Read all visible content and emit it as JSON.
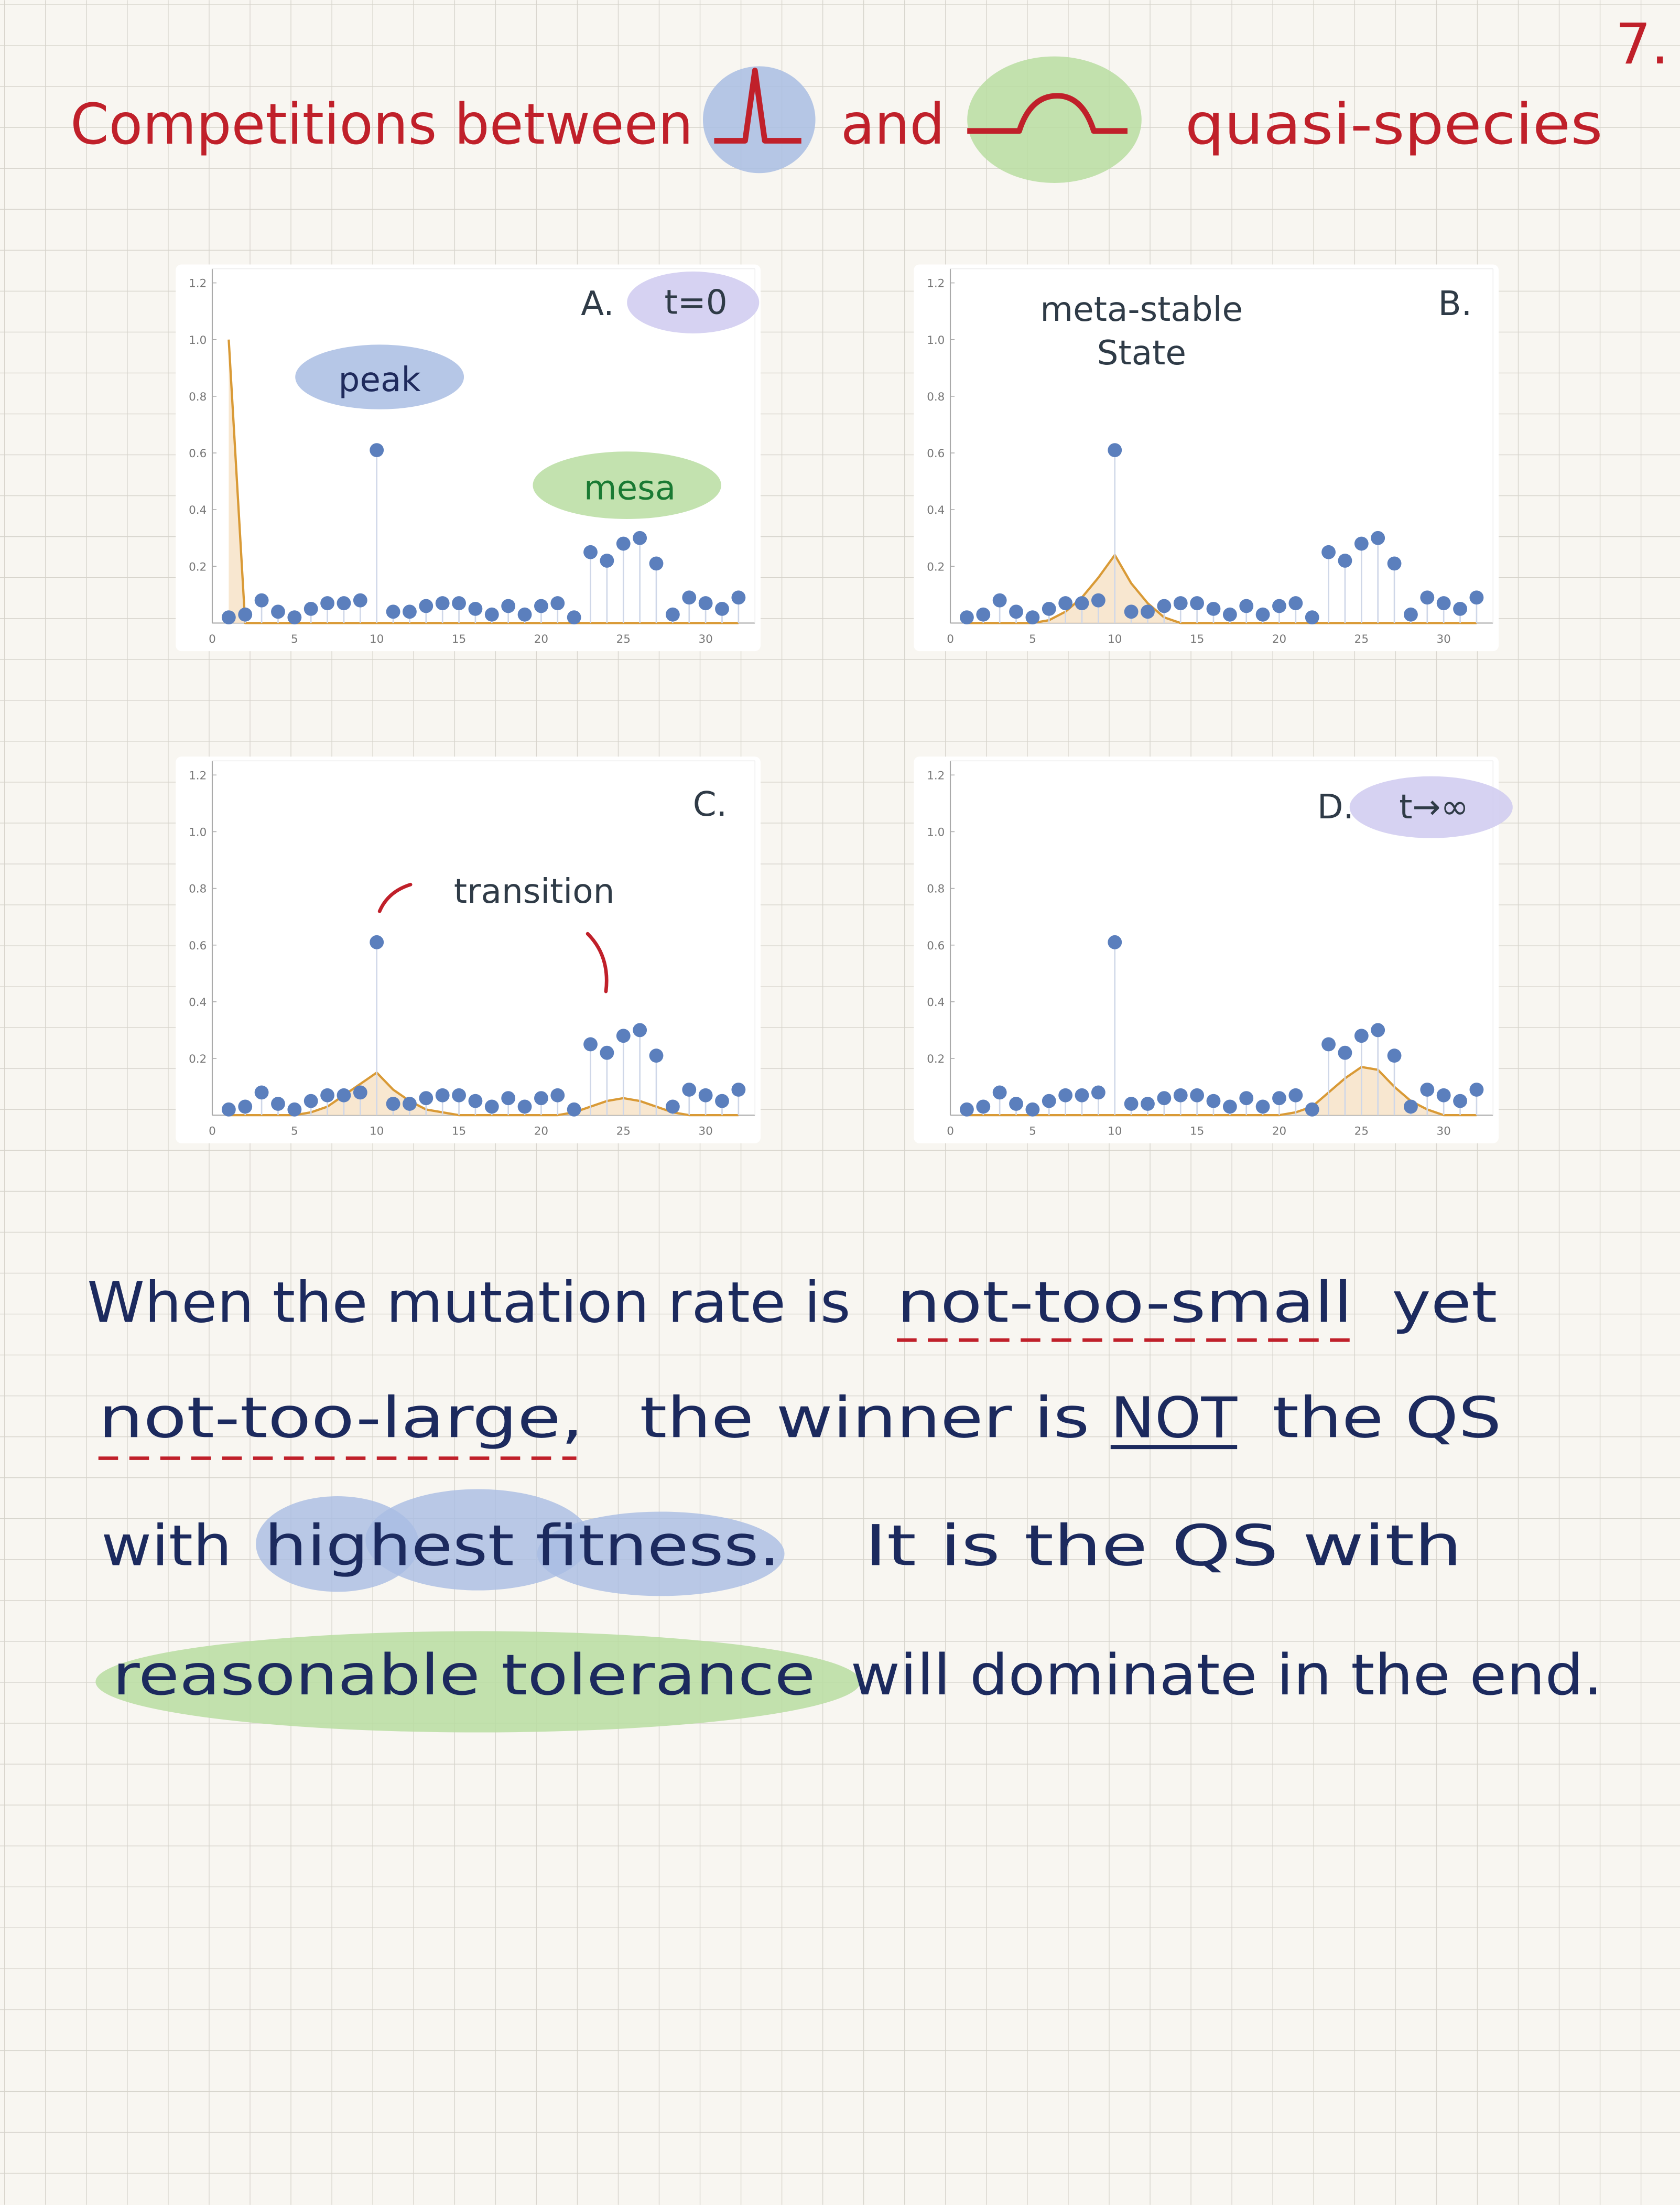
{
  "header": {
    "page_number": "7.",
    "title": [
      "Competitions between",
      "and",
      "quasi-species"
    ]
  },
  "chart_data": [
    {
      "type": "stem",
      "title": "A.",
      "annotations": [
        "t=0",
        "peak",
        "mesa"
      ],
      "x": [
        1,
        2,
        3,
        4,
        5,
        6,
        7,
        8,
        9,
        10,
        11,
        12,
        13,
        14,
        15,
        16,
        17,
        18,
        19,
        20,
        21,
        22,
        23,
        24,
        25,
        26,
        27,
        28,
        29,
        30,
        31,
        32
      ],
      "series": [
        {
          "type": "stem",
          "color": "#5b7fbd",
          "values": [
            0.02,
            0.03,
            0.08,
            0.04,
            0.02,
            0.05,
            0.07,
            0.07,
            0.08,
            0.61,
            0.04,
            0.04,
            0.06,
            0.07,
            0.07,
            0.05,
            0.03,
            0.06,
            0.03,
            0.06,
            0.07,
            0.02,
            0.25,
            0.22,
            0.28,
            0.3,
            0.21,
            0.03,
            0.09,
            0.07,
            0.05,
            0.09
          ]
        },
        {
          "type": "area",
          "color": "#d99a36",
          "fill": "#f6e1c4",
          "values": [
            1,
            0,
            0,
            0,
            0,
            0,
            0,
            0,
            0,
            0,
            0,
            0,
            0,
            0,
            0,
            0,
            0,
            0,
            0,
            0,
            0,
            0,
            0,
            0,
            0,
            0,
            0,
            0,
            0,
            0,
            0,
            0
          ]
        }
      ],
      "xlim": [
        0,
        33
      ],
      "ylim": [
        0,
        1.25
      ],
      "xticks": [
        0,
        5,
        10,
        15,
        20,
        25,
        30
      ],
      "yticks": [
        0.2,
        0.4,
        0.6,
        0.8,
        {
          "value": 1,
          "label": "1.0"
        },
        1.2
      ]
    },
    {
      "type": "stem",
      "title": "B.",
      "annotations": [
        "meta-stable",
        "State"
      ],
      "x": [
        1,
        2,
        3,
        4,
        5,
        6,
        7,
        8,
        9,
        10,
        11,
        12,
        13,
        14,
        15,
        16,
        17,
        18,
        19,
        20,
        21,
        22,
        23,
        24,
        25,
        26,
        27,
        28,
        29,
        30,
        31,
        32
      ],
      "series": [
        {
          "type": "stem",
          "color": "#5b7fbd",
          "values": [
            0.02,
            0.03,
            0.08,
            0.04,
            0.02,
            0.05,
            0.07,
            0.07,
            0.08,
            0.61,
            0.04,
            0.04,
            0.06,
            0.07,
            0.07,
            0.05,
            0.03,
            0.06,
            0.03,
            0.06,
            0.07,
            0.02,
            0.25,
            0.22,
            0.28,
            0.3,
            0.21,
            0.03,
            0.09,
            0.07,
            0.05,
            0.09
          ]
        },
        {
          "type": "area",
          "color": "#d99a36",
          "fill": "#f6e1c4",
          "values": [
            0,
            0,
            0,
            0,
            0,
            0.01,
            0.04,
            0.09,
            0.16,
            0.24,
            0.14,
            0.07,
            0.02,
            0,
            0,
            0,
            0,
            0,
            0,
            0,
            0,
            0,
            0,
            0,
            0,
            0,
            0,
            0,
            0,
            0,
            0,
            0
          ]
        }
      ],
      "xlim": [
        0,
        33
      ],
      "ylim": [
        0,
        1.25
      ],
      "xticks": [
        0,
        5,
        10,
        15,
        20,
        25,
        30
      ],
      "yticks": [
        0.2,
        0.4,
        0.6,
        0.8,
        {
          "value": 1,
          "label": "1.0"
        },
        1.2
      ]
    },
    {
      "type": "stem",
      "title": "C.",
      "annotations": [
        "transition"
      ],
      "x": [
        1,
        2,
        3,
        4,
        5,
        6,
        7,
        8,
        9,
        10,
        11,
        12,
        13,
        14,
        15,
        16,
        17,
        18,
        19,
        20,
        21,
        22,
        23,
        24,
        25,
        26,
        27,
        28,
        29,
        30,
        31,
        32
      ],
      "series": [
        {
          "type": "stem",
          "color": "#5b7fbd",
          "values": [
            0.02,
            0.03,
            0.08,
            0.04,
            0.02,
            0.05,
            0.07,
            0.07,
            0.08,
            0.61,
            0.04,
            0.04,
            0.06,
            0.07,
            0.07,
            0.05,
            0.03,
            0.06,
            0.03,
            0.06,
            0.07,
            0.02,
            0.25,
            0.22,
            0.28,
            0.3,
            0.21,
            0.03,
            0.09,
            0.07,
            0.05,
            0.09
          ]
        },
        {
          "type": "area",
          "color": "#d99a36",
          "fill": "#f6e1c4",
          "values": [
            0,
            0,
            0,
            0,
            0,
            0.01,
            0.03,
            0.07,
            0.11,
            0.15,
            0.09,
            0.05,
            0.02,
            0.01,
            0,
            0,
            0,
            0,
            0,
            0,
            0,
            0.01,
            0.03,
            0.05,
            0.06,
            0.05,
            0.03,
            0.01,
            0,
            0,
            0,
            0
          ]
        }
      ],
      "xlim": [
        0,
        33
      ],
      "ylim": [
        0,
        1.25
      ],
      "xticks": [
        0,
        5,
        10,
        15,
        20,
        25,
        30
      ],
      "yticks": [
        0.2,
        0.4,
        0.6,
        0.8,
        {
          "value": 1,
          "label": "1.0"
        },
        1.2
      ]
    },
    {
      "type": "stem",
      "title": "D.",
      "annotations": [
        "t→∞"
      ],
      "x": [
        1,
        2,
        3,
        4,
        5,
        6,
        7,
        8,
        9,
        10,
        11,
        12,
        13,
        14,
        15,
        16,
        17,
        18,
        19,
        20,
        21,
        22,
        23,
        24,
        25,
        26,
        27,
        28,
        29,
        30,
        31,
        32
      ],
      "series": [
        {
          "type": "stem",
          "color": "#5b7fbd",
          "values": [
            0.02,
            0.03,
            0.08,
            0.04,
            0.02,
            0.05,
            0.07,
            0.07,
            0.08,
            0.61,
            0.04,
            0.04,
            0.06,
            0.07,
            0.07,
            0.05,
            0.03,
            0.06,
            0.03,
            0.06,
            0.07,
            0.02,
            0.25,
            0.22,
            0.28,
            0.3,
            0.21,
            0.03,
            0.09,
            0.07,
            0.05,
            0.09
          ]
        },
        {
          "type": "area",
          "color": "#d99a36",
          "fill": "#f6e1c4",
          "values": [
            0,
            0,
            0,
            0,
            0,
            0,
            0,
            0,
            0,
            0,
            0,
            0,
            0,
            0,
            0,
            0,
            0,
            0,
            0,
            0,
            0.01,
            0.03,
            0.08,
            0.13,
            0.17,
            0.16,
            0.1,
            0.05,
            0.02,
            0,
            0,
            0
          ]
        }
      ],
      "xlim": [
        0,
        33
      ],
      "ylim": [
        0,
        1.25
      ],
      "xticks": [
        0,
        5,
        10,
        15,
        20,
        25,
        30
      ],
      "yticks": [
        0.2,
        0.4,
        0.6,
        0.8,
        {
          "value": 1,
          "label": "1.0"
        },
        1.2
      ]
    }
  ],
  "note": {
    "lines": [
      [
        "When the mutation rate is",
        "not-too-small",
        "yet"
      ],
      [
        "not-too-large,",
        "the winner is",
        "NOT",
        "the QS"
      ],
      [
        "with",
        "highest fitness.",
        "It is the QS with"
      ],
      [
        "reasonable tolerance",
        "will dominate in the end."
      ]
    ]
  }
}
